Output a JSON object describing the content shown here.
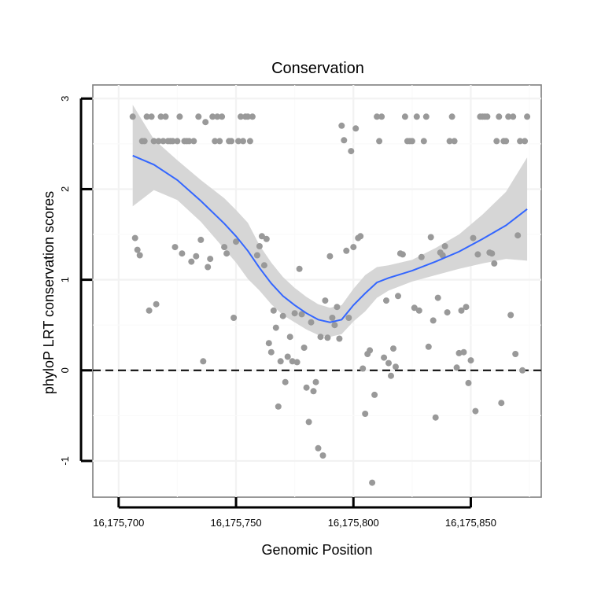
{
  "chart_data": {
    "type": "scatter",
    "title": "Conservation",
    "xlabel": "Genomic Position",
    "ylabel": "phyloP LRT conservation scores",
    "xlim": [
      16175689,
      16175880
    ],
    "ylim": [
      -1.4,
      3.15
    ],
    "x_ticks": [
      16175700,
      16175750,
      16175800,
      16175850
    ],
    "x_tick_labels": [
      "16,175,700",
      "16,175,750",
      "16,175,800",
      "16,175,850"
    ],
    "y_ticks": [
      -1,
      0,
      1,
      2,
      3
    ],
    "y_tick_labels": [
      "-1",
      "0",
      "1",
      "2",
      "3"
    ],
    "reference_line": {
      "y": 0,
      "style": "dashed"
    },
    "colors": {
      "points": "#999999",
      "smooth": "#3366ff",
      "band": "#d6d6d6"
    },
    "points": [
      [
        16175706,
        2.8
      ],
      [
        16175707,
        1.46
      ],
      [
        16175708,
        1.33
      ],
      [
        16175709,
        1.27
      ],
      [
        16175710,
        2.53
      ],
      [
        16175711,
        2.53
      ],
      [
        16175712,
        2.8
      ],
      [
        16175713,
        0.66
      ],
      [
        16175714,
        2.8
      ],
      [
        16175715,
        2.53
      ],
      [
        16175716,
        0.73
      ],
      [
        16175717,
        2.53
      ],
      [
        16175718,
        2.8
      ],
      [
        16175719,
        2.53
      ],
      [
        16175720,
        2.8
      ],
      [
        16175721,
        2.53
      ],
      [
        16175722,
        2.53
      ],
      [
        16175723,
        2.53
      ],
      [
        16175724,
        1.36
      ],
      [
        16175725,
        2.53
      ],
      [
        16175726,
        2.8
      ],
      [
        16175727,
        1.29
      ],
      [
        16175728,
        2.53
      ],
      [
        16175729,
        2.53
      ],
      [
        16175730,
        2.53
      ],
      [
        16175731,
        1.2
      ],
      [
        16175732,
        2.53
      ],
      [
        16175733,
        1.26
      ],
      [
        16175734,
        2.8
      ],
      [
        16175735,
        1.44
      ],
      [
        16175736,
        0.1
      ],
      [
        16175737,
        2.74
      ],
      [
        16175738,
        1.14
      ],
      [
        16175739,
        1.23
      ],
      [
        16175740,
        2.8
      ],
      [
        16175741,
        2.53
      ],
      [
        16175742,
        2.8
      ],
      [
        16175743,
        2.53
      ],
      [
        16175744,
        2.8
      ],
      [
        16175745,
        1.36
      ],
      [
        16175746,
        1.29
      ],
      [
        16175747,
        2.53
      ],
      [
        16175748,
        2.53
      ],
      [
        16175749,
        0.58
      ],
      [
        16175750,
        1.42
      ],
      [
        16175751,
        2.53
      ],
      [
        16175752,
        2.8
      ],
      [
        16175753,
        2.53
      ],
      [
        16175754,
        2.8
      ],
      [
        16175755,
        2.8
      ],
      [
        16175756,
        2.53
      ],
      [
        16175757,
        2.8
      ],
      [
        16175759,
        1.27
      ],
      [
        16175760,
        1.37
      ],
      [
        16175761,
        1.48
      ],
      [
        16175762,
        1.16
      ],
      [
        16175763,
        1.45
      ],
      [
        16175764,
        0.3
      ],
      [
        16175765,
        0.2
      ],
      [
        16175766,
        0.66
      ],
      [
        16175767,
        0.47
      ],
      [
        16175768,
        -0.4
      ],
      [
        16175769,
        0.1
      ],
      [
        16175770,
        0.6
      ],
      [
        16175771,
        -0.13
      ],
      [
        16175772,
        0.15
      ],
      [
        16175773,
        0.37
      ],
      [
        16175774,
        0.1
      ],
      [
        16175775,
        0.63
      ],
      [
        16175776,
        0.09
      ],
      [
        16175777,
        1.12
      ],
      [
        16175778,
        0.62
      ],
      [
        16175779,
        0.25
      ],
      [
        16175780,
        -0.19
      ],
      [
        16175781,
        -0.57
      ],
      [
        16175782,
        0.53
      ],
      [
        16175783,
        -0.23
      ],
      [
        16175784,
        -0.13
      ],
      [
        16175785,
        -0.86
      ],
      [
        16175786,
        0.37
      ],
      [
        16175787,
        -0.94
      ],
      [
        16175788,
        0.77
      ],
      [
        16175789,
        0.36
      ],
      [
        16175790,
        1.26
      ],
      [
        16175791,
        0.58
      ],
      [
        16175792,
        0.5
      ],
      [
        16175793,
        0.7
      ],
      [
        16175794,
        0.35
      ],
      [
        16175795,
        2.7
      ],
      [
        16175796,
        2.54
      ],
      [
        16175797,
        1.32
      ],
      [
        16175798,
        0.58
      ],
      [
        16175799,
        2.42
      ],
      [
        16175800,
        1.36
      ],
      [
        16175801,
        2.67
      ],
      [
        16175802,
        1.46
      ],
      [
        16175803,
        1.48
      ],
      [
        16175804,
        0.02
      ],
      [
        16175805,
        -0.48
      ],
      [
        16175806,
        0.18
      ],
      [
        16175807,
        0.22
      ],
      [
        16175808,
        -1.24
      ],
      [
        16175809,
        -0.27
      ],
      [
        16175810,
        2.8
      ],
      [
        16175811,
        2.53
      ],
      [
        16175812,
        2.8
      ],
      [
        16175813,
        0.14
      ],
      [
        16175814,
        0.77
      ],
      [
        16175815,
        0.08
      ],
      [
        16175816,
        -0.06
      ],
      [
        16175817,
        0.24
      ],
      [
        16175818,
        0.04
      ],
      [
        16175819,
        0.82
      ],
      [
        16175820,
        1.29
      ],
      [
        16175821,
        1.28
      ],
      [
        16175822,
        2.8
      ],
      [
        16175823,
        2.53
      ],
      [
        16175824,
        2.53
      ],
      [
        16175825,
        2.53
      ],
      [
        16175826,
        0.69
      ],
      [
        16175827,
        2.8
      ],
      [
        16175828,
        0.66
      ],
      [
        16175829,
        1.25
      ],
      [
        16175830,
        2.53
      ],
      [
        16175831,
        2.8
      ],
      [
        16175832,
        0.26
      ],
      [
        16175833,
        1.47
      ],
      [
        16175834,
        0.55
      ],
      [
        16175835,
        -0.52
      ],
      [
        16175836,
        0.8
      ],
      [
        16175837,
        1.3
      ],
      [
        16175838,
        1.27
      ],
      [
        16175839,
        1.37
      ],
      [
        16175840,
        0.64
      ],
      [
        16175841,
        2.53
      ],
      [
        16175842,
        2.8
      ],
      [
        16175843,
        2.53
      ],
      [
        16175844,
        0.03
      ],
      [
        16175845,
        0.19
      ],
      [
        16175846,
        0.66
      ],
      [
        16175847,
        0.2
      ],
      [
        16175848,
        0.7
      ],
      [
        16175849,
        -0.14
      ],
      [
        16175850,
        0.11
      ],
      [
        16175851,
        1.46
      ],
      [
        16175852,
        -0.45
      ],
      [
        16175853,
        1.28
      ],
      [
        16175854,
        2.8
      ],
      [
        16175855,
        2.8
      ],
      [
        16175856,
        2.8
      ],
      [
        16175857,
        2.8
      ],
      [
        16175858,
        1.3
      ],
      [
        16175859,
        1.29
      ],
      [
        16175860,
        1.18
      ],
      [
        16175861,
        2.53
      ],
      [
        16175862,
        2.8
      ],
      [
        16175863,
        -0.36
      ],
      [
        16175864,
        2.53
      ],
      [
        16175865,
        2.53
      ],
      [
        16175866,
        2.8
      ],
      [
        16175867,
        0.61
      ],
      [
        16175868,
        2.8
      ],
      [
        16175869,
        0.18
      ],
      [
        16175870,
        1.49
      ],
      [
        16175871,
        2.53
      ],
      [
        16175872,
        0.0
      ],
      [
        16175873,
        2.53
      ],
      [
        16175874,
        2.8
      ]
    ],
    "smooth": {
      "x": [
        16175706,
        16175715,
        16175725,
        16175735,
        16175745,
        16175750,
        16175755,
        16175760,
        16175765,
        16175770,
        16175775,
        16175780,
        16175785,
        16175790,
        16175795,
        16175800,
        16175805,
        16175810,
        16175815,
        16175825,
        16175835,
        16175845,
        16175855,
        16175865,
        16175874
      ],
      "y": [
        2.37,
        2.27,
        2.1,
        1.87,
        1.62,
        1.48,
        1.32,
        1.13,
        0.96,
        0.82,
        0.72,
        0.63,
        0.56,
        0.53,
        0.56,
        0.72,
        0.85,
        0.97,
        1.02,
        1.1,
        1.2,
        1.31,
        1.45,
        1.6,
        1.78
      ],
      "upper": [
        2.93,
        2.55,
        2.32,
        2.1,
        1.9,
        1.77,
        1.63,
        1.38,
        1.19,
        1.03,
        0.91,
        0.81,
        0.73,
        0.69,
        0.72,
        0.9,
        1.05,
        1.14,
        1.16,
        1.22,
        1.35,
        1.5,
        1.72,
        1.97,
        2.35
      ],
      "lower": [
        1.81,
        1.99,
        1.88,
        1.64,
        1.34,
        1.19,
        1.01,
        0.88,
        0.73,
        0.61,
        0.53,
        0.45,
        0.39,
        0.37,
        0.4,
        0.54,
        0.65,
        0.8,
        0.88,
        0.98,
        1.05,
        1.12,
        1.18,
        1.23,
        1.21
      ]
    }
  }
}
